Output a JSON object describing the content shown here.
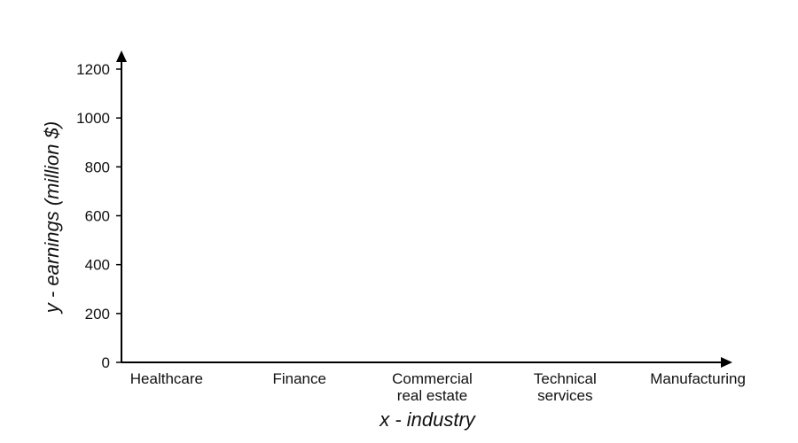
{
  "chart_data": {
    "type": "bar",
    "categories": [
      [
        "Healthcare"
      ],
      [
        "Finance"
      ],
      [
        "Commercial",
        "real estate"
      ],
      [
        "Technical",
        "services"
      ],
      [
        "Manufacturing"
      ]
    ],
    "series": [],
    "xlabel": "x - industry",
    "ylabel": "y - earnings (million $)",
    "ylim": [
      0,
      1200
    ],
    "yticks": [
      0,
      200,
      400,
      600,
      800,
      1000,
      1200
    ],
    "grid": false,
    "colors": {
      "axis": "#000000",
      "text": "#111111",
      "background": "#ffffff"
    }
  }
}
